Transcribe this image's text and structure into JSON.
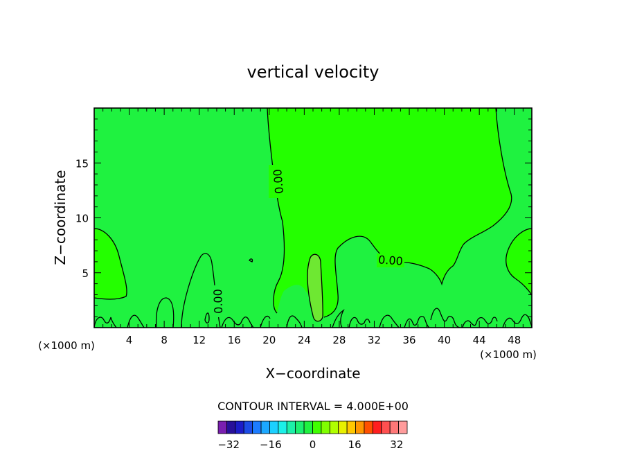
{
  "chart_data": {
    "type": "contour",
    "title": "vertical velocity",
    "xlabel": "X−coordinate",
    "ylabel": "Z−coordinate",
    "x_unit_left": "(×1000 m)",
    "x_unit_right": "(×1000 m)",
    "xlim": [
      0,
      50
    ],
    "ylim": [
      0,
      20
    ],
    "x_ticks": [
      4,
      8,
      12,
      16,
      20,
      24,
      28,
      32,
      36,
      40,
      44,
      48
    ],
    "y_ticks": [
      5,
      10,
      15
    ],
    "contour_labels": [
      "0.00",
      "0.00",
      "0.00"
    ],
    "contour_interval_text": "CONTOUR INTERVAL = 4.000E+00",
    "colorbar": {
      "colors": [
        "#7a1fb0",
        "#28109a",
        "#1c1cc8",
        "#1c4ce6",
        "#1c7cff",
        "#1ca8ff",
        "#1cd0ff",
        "#1cf0e8",
        "#1cf0a8",
        "#1cf070",
        "#1ff240",
        "#40ff00",
        "#80ff00",
        "#b0ff00",
        "#e8f000",
        "#ffc800",
        "#ff9600",
        "#ff5000",
        "#ff1e1e",
        "#ff5050",
        "#ff7878",
        "#ff9c9c"
      ],
      "tick_labels": [
        "−32",
        "−16",
        "0",
        "16",
        "32"
      ],
      "tick_values": [
        -32,
        -16,
        0,
        16,
        32
      ]
    },
    "fill_colors": {
      "background": "#1ff240",
      "updraft_zone": "#24ff00",
      "core": "#6ee832"
    }
  }
}
